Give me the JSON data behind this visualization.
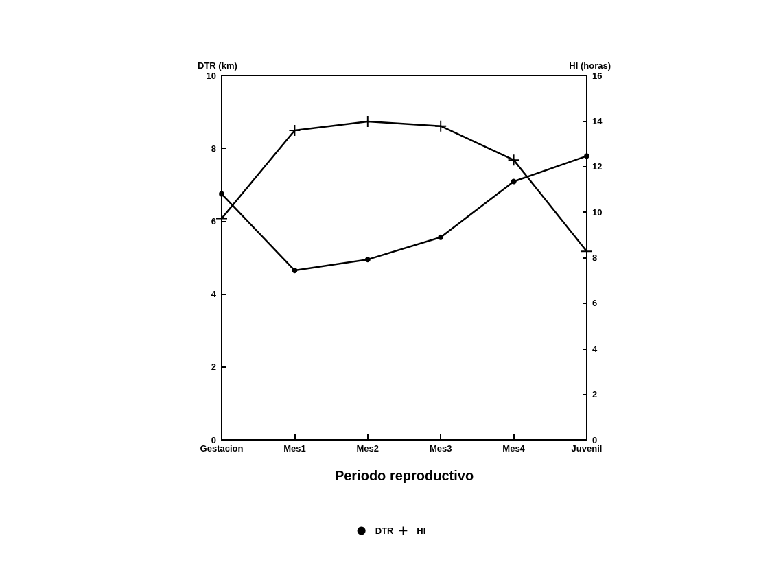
{
  "chart_data": {
    "type": "line",
    "xlabel": "Periodo reproductivo",
    "ylabel": "DTR (km)",
    "y2label": "HI (horas)",
    "categories": [
      "Gestacion",
      "Mes1",
      "Mes2",
      "Mes3",
      "Mes4",
      "Juvenil"
    ],
    "series": [
      {
        "name": "DTR",
        "color": "#000000",
        "marker": "circle",
        "values": [
          6.75,
          4.65,
          4.95,
          5.56,
          7.09,
          7.79
        ]
      },
      {
        "name": "HI",
        "color": "#000000",
        "marker": "cross",
        "axis": "y2",
        "values": [
          9.72,
          13.59,
          13.98,
          13.78,
          12.29,
          8.28
        ]
      }
    ],
    "ylim": [
      0,
      10
    ],
    "yticks": [
      0,
      2,
      4,
      6,
      8,
      10
    ],
    "y2lim": [
      0,
      16
    ],
    "y2ticks": [
      0,
      2,
      4,
      6,
      8,
      10,
      12,
      14,
      16
    ],
    "grid": false,
    "legend": "bottom",
    "line_style": "solid"
  }
}
